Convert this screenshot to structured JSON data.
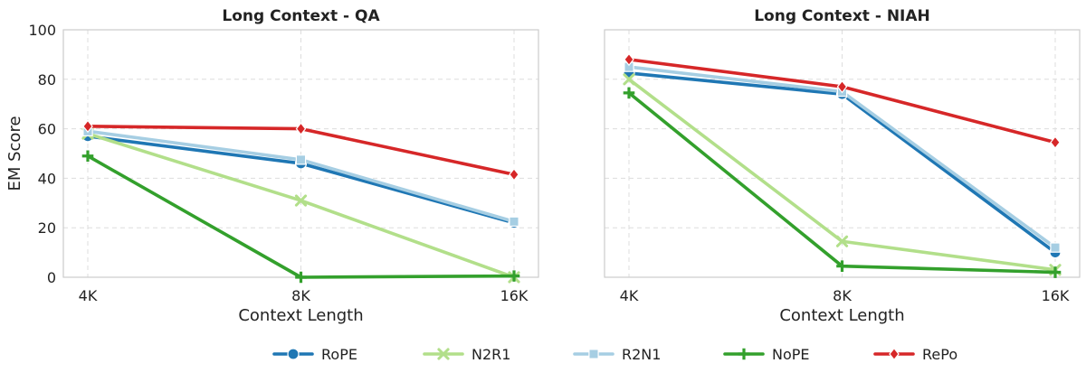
{
  "chart_data": [
    {
      "type": "line",
      "title": "Long Context - QA",
      "xlabel": "Context Length",
      "ylabel": "EM Score",
      "categories": [
        "4K",
        "8K",
        "16K"
      ],
      "ylim": [
        0,
        100
      ],
      "yticks": [
        0,
        20,
        40,
        60,
        80,
        100
      ],
      "grid": true,
      "series": [
        {
          "name": "RoPE",
          "values": [
            57,
            46,
            22
          ]
        },
        {
          "name": "N2R1",
          "values": [
            58,
            31,
            0
          ]
        },
        {
          "name": "R2N1",
          "values": [
            59,
            47.5,
            22.5
          ]
        },
        {
          "name": "NoPE",
          "values": [
            49,
            0,
            0.5
          ]
        },
        {
          "name": "RePo",
          "values": [
            61,
            60,
            41.5
          ]
        }
      ]
    },
    {
      "type": "line",
      "title": "Long Context - NIAH",
      "xlabel": "Context Length",
      "ylabel": "",
      "categories": [
        "4K",
        "8K",
        "16K"
      ],
      "ylim": [
        0,
        100
      ],
      "yticks": [
        0,
        20,
        40,
        60,
        80,
        100
      ],
      "grid": true,
      "series": [
        {
          "name": "RoPE",
          "values": [
            82.5,
            74,
            10
          ]
        },
        {
          "name": "N2R1",
          "values": [
            80,
            14.5,
            3
          ]
        },
        {
          "name": "R2N1",
          "values": [
            85,
            75,
            12
          ]
        },
        {
          "name": "NoPE",
          "values": [
            74.5,
            4.5,
            2
          ]
        },
        {
          "name": "RePo",
          "values": [
            88,
            77,
            54.5
          ]
        }
      ]
    }
  ],
  "legend": {
    "placement": "bottom-center",
    "items": [
      {
        "label": "RoPE",
        "color": "#1f77b4",
        "marker": "circle"
      },
      {
        "label": "N2R1",
        "color": "#b2df8a",
        "marker": "x"
      },
      {
        "label": "R2N1",
        "color": "#a6cee3",
        "marker": "square"
      },
      {
        "label": "NoPE",
        "color": "#33a02c",
        "marker": "plus"
      },
      {
        "label": "RePo",
        "color": "#d62728",
        "marker": "diamond"
      }
    ]
  },
  "colors": {
    "RoPE": "#1f77b4",
    "N2R1": "#b2df8a",
    "R2N1": "#a6cee3",
    "NoPE": "#33a02c",
    "RePo": "#d62728",
    "grid": "#dddddd",
    "frame": "#cccccc"
  }
}
